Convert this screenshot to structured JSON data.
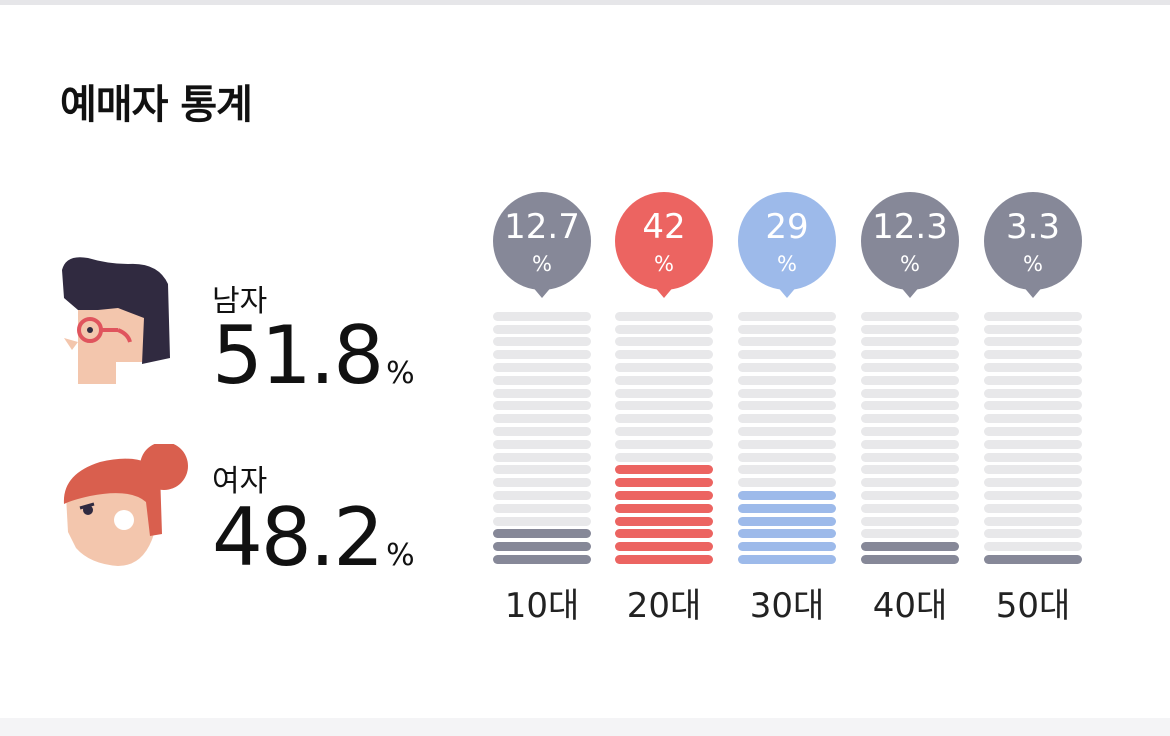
{
  "section": {
    "title": "예매자 통계"
  },
  "gender": [
    {
      "label": "남자",
      "value": "51.8",
      "unit": "%",
      "icon": "male-face-icon"
    },
    {
      "label": "여자",
      "value": "48.2",
      "unit": "%",
      "icon": "female-face-icon"
    }
  ],
  "colors": {
    "gray": "#868898",
    "red": "#ec6461",
    "blue": "#9dbaea",
    "empty": "#e8e8ea",
    "white": "#ffffff"
  },
  "chart_data": {
    "type": "bar",
    "categories": [
      "10대",
      "20대",
      "30대",
      "40대",
      "50대"
    ],
    "values": [
      12.7,
      42,
      29,
      12.3,
      3.3
    ],
    "value_labels": [
      "12.7",
      "42",
      "29",
      "12.3",
      "3.3"
    ],
    "unit": "%",
    "series_colors": [
      "#868898",
      "#ec6461",
      "#9dbaea",
      "#868898",
      "#868898"
    ],
    "total_segments": 20,
    "filled_segments": [
      3,
      8,
      6,
      2,
      1
    ]
  }
}
